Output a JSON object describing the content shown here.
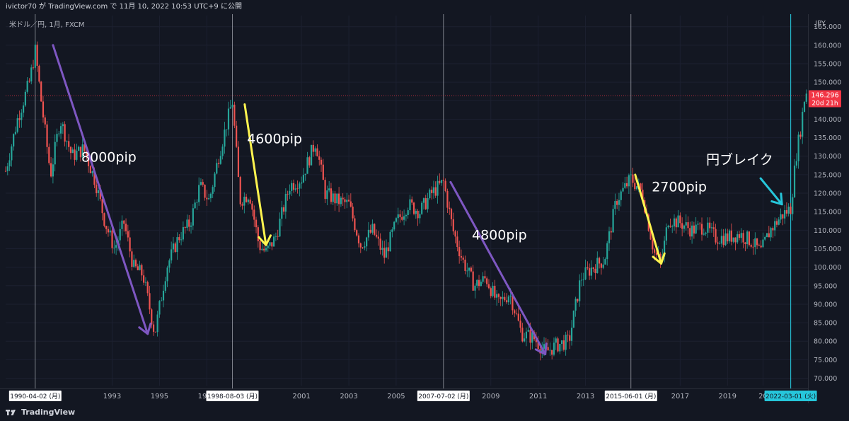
{
  "header": {
    "publisher_line": "ivictor70 が TradingView.com で 11月 10, 2022 10:53 UTC+9 に公開"
  },
  "symbol": {
    "info": "米ドル／円, 1月, FXCM"
  },
  "footer": {
    "brand": "TradingView"
  },
  "colors": {
    "background": "#131722",
    "up_candle": "#26a69a",
    "down_candle": "#ef5350",
    "price_line": "#f23645",
    "purple_arrow": "#7e57c2",
    "yellow_arrow": "#fff44f",
    "cyan_arrow": "#26c6da"
  },
  "chart_data": {
    "type": "candlestick",
    "axis": {
      "currency": "JPY",
      "y_ticks": [
        "70.000",
        "75.000",
        "80.000",
        "85.000",
        "90.000",
        "95.000",
        "100.000",
        "105.000",
        "110.000",
        "115.000",
        "120.000",
        "125.000",
        "130.000",
        "135.000",
        "140.000",
        "145.000",
        "150.000",
        "155.000",
        "160.000",
        "165.000"
      ],
      "ylim": [
        68,
        168
      ],
      "x_ticks": [
        "1993",
        "1995",
        "1997",
        "2001",
        "2003",
        "2005",
        "2009",
        "2011",
        "2013",
        "2017",
        "2019",
        "20"
      ],
      "xlim": [
        1989.0,
        2022.9
      ]
    },
    "last_price": {
      "value": 146.296,
      "label": "146.296",
      "countdown": "20d 21h"
    },
    "date_markers": [
      {
        "date": "1990-04-02 (月)",
        "x": 1990.25
      },
      {
        "date": "1998-08-03 (月)",
        "x": 1998.58
      },
      {
        "date": "2007-07-02 (月)",
        "x": 2007.5
      },
      {
        "date": "2015-06-01 (月)",
        "x": 2015.42
      },
      {
        "date": "2022-03-01 (火)",
        "x": 2022.17
      }
    ],
    "price_path": [
      [
        1989.0,
        126
      ],
      [
        1989.5,
        140
      ],
      [
        1990.0,
        150
      ],
      [
        1990.25,
        158.5
      ],
      [
        1990.5,
        145
      ],
      [
        1990.9,
        125
      ],
      [
        1991.3,
        140
      ],
      [
        1991.8,
        130
      ],
      [
        1992.3,
        132
      ],
      [
        1992.8,
        123
      ],
      [
        1993.2,
        112
      ],
      [
        1993.6,
        105
      ],
      [
        1994.0,
        112
      ],
      [
        1994.4,
        100
      ],
      [
        1994.8,
        98
      ],
      [
        1995.3,
        82
      ],
      [
        1995.8,
        100
      ],
      [
        1996.3,
        108
      ],
      [
        1996.8,
        112
      ],
      [
        1997.2,
        122
      ],
      [
        1997.6,
        118
      ],
      [
        1998.0,
        130
      ],
      [
        1998.58,
        145
      ],
      [
        1998.9,
        118
      ],
      [
        1999.3,
        120
      ],
      [
        1999.7,
        106
      ],
      [
        2000.0,
        104
      ],
      [
        2000.4,
        108
      ],
      [
        2001.0,
        122
      ],
      [
        2001.5,
        124
      ],
      [
        2002.1,
        134
      ],
      [
        2002.5,
        120
      ],
      [
        2003.0,
        118
      ],
      [
        2003.5,
        117
      ],
      [
        2004.0,
        106
      ],
      [
        2004.5,
        110
      ],
      [
        2005.0,
        103
      ],
      [
        2005.5,
        112
      ],
      [
        2006.0,
        117
      ],
      [
        2006.5,
        115
      ],
      [
        2007.0,
        120
      ],
      [
        2007.5,
        123
      ],
      [
        2007.9,
        110
      ],
      [
        2008.3,
        102
      ],
      [
        2008.8,
        95
      ],
      [
        2009.3,
        97
      ],
      [
        2009.8,
        90
      ],
      [
        2010.3,
        93
      ],
      [
        2010.8,
        82
      ],
      [
        2011.3,
        81
      ],
      [
        2011.8,
        77
      ],
      [
        2012.3,
        79
      ],
      [
        2012.8,
        80
      ],
      [
        2013.3,
        97
      ],
      [
        2013.8,
        100
      ],
      [
        2014.3,
        102
      ],
      [
        2014.8,
        118
      ],
      [
        2015.42,
        124
      ],
      [
        2015.9,
        120
      ],
      [
        2016.4,
        104
      ],
      [
        2016.7,
        101
      ],
      [
        2017.0,
        113
      ],
      [
        2017.5,
        112
      ],
      [
        2018.0,
        110
      ],
      [
        2018.5,
        111
      ],
      [
        2019.0,
        108
      ],
      [
        2019.5,
        108
      ],
      [
        2020.0,
        109
      ],
      [
        2020.5,
        107
      ],
      [
        2020.9,
        104
      ],
      [
        2021.3,
        110
      ],
      [
        2021.8,
        114
      ],
      [
        2022.17,
        116
      ],
      [
        2022.4,
        130
      ],
      [
        2022.6,
        138
      ],
      [
        2022.8,
        148
      ],
      [
        2022.9,
        146.3
      ]
    ],
    "annotations": [
      {
        "type": "arrow",
        "color": "purple",
        "from": [
          1991.0,
          160
        ],
        "to": [
          1995.0,
          82
        ]
      },
      {
        "type": "text",
        "label": "8000pip",
        "at": [
          1992.2,
          128.5
        ]
      },
      {
        "type": "arrow",
        "color": "yellow",
        "from": [
          1999.1,
          144
        ],
        "to": [
          2000.0,
          106
        ]
      },
      {
        "type": "text",
        "label": "4600pip",
        "at": [
          1999.2,
          133.5
        ]
      },
      {
        "type": "arrow",
        "color": "purple",
        "from": [
          2007.8,
          123
        ],
        "to": [
          2011.8,
          76.5
        ]
      },
      {
        "type": "text",
        "label": "4800pip",
        "at": [
          2008.7,
          107.5
        ]
      },
      {
        "type": "arrow",
        "color": "yellow",
        "from": [
          2015.6,
          125
        ],
        "to": [
          2016.7,
          101
        ]
      },
      {
        "type": "text",
        "label": "2700pip",
        "at": [
          2016.3,
          120.5
        ]
      },
      {
        "type": "arrow",
        "color": "cyan",
        "from": [
          2020.9,
          124
        ],
        "to": [
          2021.8,
          117
        ]
      },
      {
        "type": "text",
        "label": "円ブレイク",
        "at": [
          2018.6,
          127.8
        ]
      }
    ]
  }
}
